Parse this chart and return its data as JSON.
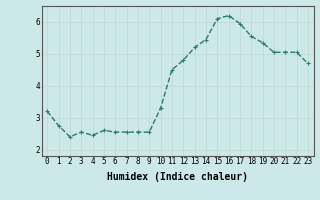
{
  "x": [
    0,
    1,
    2,
    3,
    4,
    5,
    6,
    7,
    8,
    9,
    10,
    11,
    12,
    13,
    14,
    15,
    16,
    17,
    18,
    19,
    20,
    21,
    22,
    23
  ],
  "y": [
    3.2,
    2.75,
    2.4,
    2.55,
    2.45,
    2.6,
    2.55,
    2.55,
    2.55,
    2.55,
    3.3,
    4.5,
    4.8,
    5.2,
    5.45,
    6.1,
    6.2,
    5.95,
    5.55,
    5.35,
    5.05,
    5.05,
    5.05,
    4.7
  ],
  "xlabel": "Humidex (Indice chaleur)",
  "bg_color": "#cce8e8",
  "line_color": "#2d7a6e",
  "marker": "+",
  "marker_size": 3,
  "linewidth": 1.0,
  "linestyle": "--",
  "ylim": [
    1.8,
    6.5
  ],
  "xlim": [
    -0.5,
    23.5
  ],
  "yticks": [
    2,
    3,
    4,
    5,
    6
  ],
  "xticks": [
    0,
    1,
    2,
    3,
    4,
    5,
    6,
    7,
    8,
    9,
    10,
    11,
    12,
    13,
    14,
    15,
    16,
    17,
    18,
    19,
    20,
    21,
    22,
    23
  ],
  "grid_color": "#c0d8d0",
  "tick_fontsize": 5.5,
  "xlabel_fontsize": 7,
  "xlabel_font": "monospace",
  "spine_color": "#555555"
}
